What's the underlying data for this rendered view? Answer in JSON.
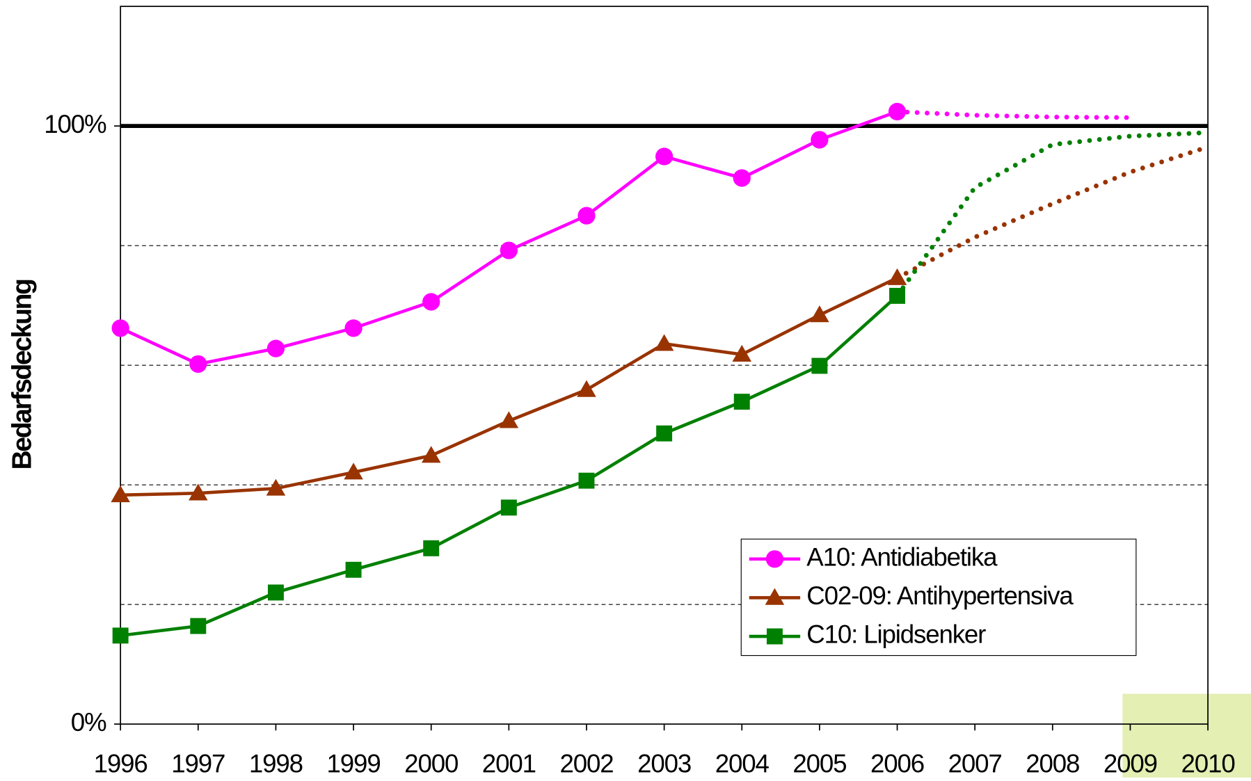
{
  "chart_data": {
    "type": "line",
    "y_label": "Bedarfsdeckung",
    "x": [
      1996,
      1997,
      1998,
      1999,
      2000,
      2001,
      2002,
      2003,
      2004,
      2005,
      2006,
      2007,
      2008,
      2009,
      2010
    ],
    "xlim": [
      1996,
      2010
    ],
    "xticks": [
      1996,
      1997,
      1998,
      1999,
      2000,
      2001,
      2002,
      2003,
      2004,
      2005,
      2006,
      2007,
      2008,
      2009,
      2010
    ],
    "ylim": [
      0,
      120
    ],
    "yticks": [
      {
        "value": 0,
        "label": "0%"
      },
      {
        "value": 100,
        "label": "100%"
      }
    ],
    "grid_values": [
      20,
      40,
      60,
      80
    ],
    "grid": true,
    "legend": "lower right",
    "series": [
      {
        "name": "A10: Antidiabetika",
        "color": "#ff00ff",
        "marker": "circle",
        "values": [
          66.2,
          60.2,
          62.8,
          66.2,
          70.6,
          79.2,
          85.0,
          94.9,
          91.3,
          97.7,
          102.4,
          null,
          null,
          null,
          null
        ],
        "projection": [
          null,
          null,
          null,
          null,
          null,
          null,
          null,
          null,
          null,
          null,
          null,
          101.8,
          101.5,
          101.4,
          null
        ]
      },
      {
        "name": "C02-09: Antihypertensiva",
        "color": "#993300",
        "marker": "triangle",
        "values": [
          38.3,
          38.6,
          39.4,
          42.1,
          44.9,
          50.7,
          55.9,
          63.6,
          61.8,
          68.4,
          74.6,
          null,
          null,
          null,
          null
        ],
        "projection": [
          null,
          null,
          null,
          null,
          null,
          null,
          null,
          null,
          null,
          null,
          null,
          81.4,
          87.0,
          92.3,
          96.5
        ]
      },
      {
        "name": "C10: Lipidsenker",
        "color": "#008000",
        "marker": "square",
        "values": [
          14.8,
          16.4,
          22.0,
          25.8,
          29.4,
          36.2,
          40.7,
          48.6,
          53.9,
          59.9,
          71.6,
          null,
          null,
          null,
          null
        ],
        "projection": [
          null,
          null,
          null,
          null,
          null,
          null,
          null,
          null,
          null,
          null,
          null,
          89.7,
          96.9,
          98.3,
          98.9
        ]
      }
    ]
  }
}
